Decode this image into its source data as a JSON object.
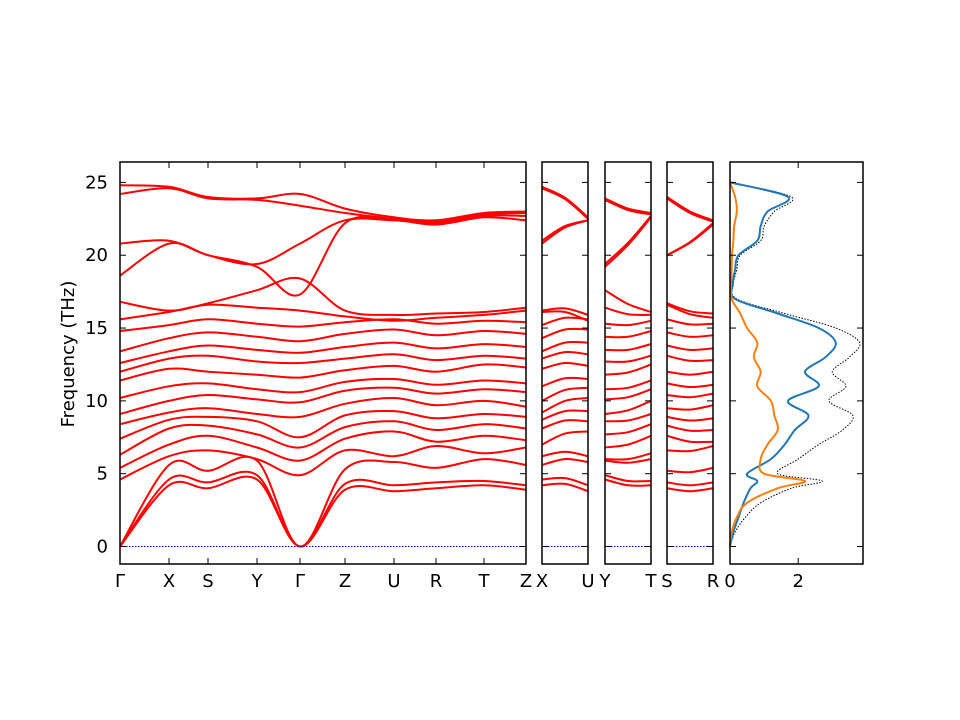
{
  "figure": {
    "colors": {
      "bands": "#ff0000",
      "zero_line": "#0000cc",
      "dos_total": "#000000",
      "dos_partial_1": "#1f77b4",
      "dos_partial_2": "#ff7f0e",
      "frame": "#000000"
    }
  },
  "chart_data": [
    {
      "type": "line",
      "ylabel": "Frequency (THz)",
      "ylim": [
        -1.2,
        26.4
      ],
      "yticks": [
        "0",
        "5",
        "10",
        "15",
        "20",
        "25"
      ],
      "xticks": [
        "Γ",
        "X",
        "S",
        "Y",
        "Γ",
        "Z",
        "U",
        "R",
        "T",
        "Z"
      ],
      "segments": [
        "Γ–X–S–Y–Γ–Z–U–R–T–Z",
        "X–U",
        "Y–T",
        "S–R"
      ],
      "zero_line": 0,
      "series": [
        {
          "values": [
            0.0,
            4.2,
            4.0,
            4.6,
            0.0,
            3.9,
            3.8,
            4.0,
            4.2,
            3.9
          ]
        },
        {
          "values": [
            0.0,
            4.6,
            4.4,
            4.9,
            0.0,
            4.3,
            4.2,
            4.4,
            4.5,
            4.2
          ]
        },
        {
          "values": [
            0.0,
            5.6,
            5.2,
            5.9,
            0.0,
            5.3,
            5.8,
            5.4,
            6.0,
            5.6
          ]
        },
        {
          "values": [
            4.6,
            6.2,
            6.6,
            6.0,
            4.9,
            6.6,
            6.2,
            6.9,
            6.4,
            6.8
          ]
        },
        {
          "values": [
            5.4,
            7.0,
            7.6,
            6.8,
            5.9,
            7.4,
            7.9,
            7.2,
            7.6,
            7.3
          ]
        },
        {
          "values": [
            6.3,
            8.1,
            8.3,
            7.7,
            6.8,
            8.2,
            8.6,
            8.0,
            8.4,
            8.1
          ]
        },
        {
          "values": [
            7.4,
            8.7,
            8.9,
            8.6,
            7.5,
            9.0,
            9.3,
            8.8,
            9.1,
            8.9
          ]
        },
        {
          "values": [
            8.4,
            9.2,
            9.5,
            9.1,
            8.9,
            9.8,
            10.2,
            9.7,
            10.0,
            9.6
          ]
        },
        {
          "values": [
            9.1,
            10.0,
            10.4,
            10.1,
            9.9,
            10.7,
            10.9,
            10.5,
            10.8,
            10.6
          ]
        },
        {
          "values": [
            10.2,
            11.0,
            11.2,
            10.8,
            10.6,
            11.3,
            11.5,
            11.1,
            11.4,
            11.2
          ]
        },
        {
          "values": [
            11.4,
            12.2,
            12.0,
            11.8,
            11.6,
            12.1,
            12.4,
            12.0,
            12.5,
            12.3
          ]
        },
        {
          "values": [
            12.0,
            12.9,
            13.1,
            12.7,
            12.6,
            12.9,
            13.2,
            12.8,
            13.1,
            12.9
          ]
        },
        {
          "values": [
            12.6,
            13.4,
            13.8,
            13.5,
            13.3,
            13.7,
            14.0,
            13.6,
            13.9,
            13.7
          ]
        },
        {
          "values": [
            13.4,
            14.3,
            14.7,
            14.4,
            14.1,
            14.6,
            14.9,
            14.5,
            14.8,
            14.6
          ]
        },
        {
          "values": [
            14.8,
            15.2,
            15.6,
            15.3,
            15.1,
            15.4,
            15.6,
            15.3,
            15.5,
            15.4
          ]
        },
        {
          "values": [
            15.6,
            16.1,
            16.6,
            16.4,
            16.2,
            15.8,
            15.5,
            15.7,
            15.9,
            16.2
          ]
        },
        {
          "values": [
            16.8,
            16.2,
            16.7,
            17.6,
            18.4,
            16.2,
            15.9,
            16.0,
            16.1,
            16.4
          ]
        },
        {
          "values": [
            18.6,
            20.8,
            20.0,
            19.2,
            17.3,
            22.2,
            22.4,
            22.1,
            22.6,
            22.4
          ]
        },
        {
          "values": [
            20.8,
            21.0,
            20.0,
            19.4,
            20.8,
            22.4,
            22.4,
            22.2,
            22.7,
            22.7
          ]
        },
        {
          "values": [
            24.2,
            24.6,
            23.9,
            23.8,
            23.4,
            22.9,
            22.5,
            22.3,
            22.8,
            22.9
          ]
        },
        {
          "values": [
            24.8,
            24.7,
            24.0,
            23.9,
            24.2,
            23.2,
            22.6,
            22.4,
            22.9,
            23.0
          ]
        }
      ]
    },
    {
      "type": "line",
      "xticks": [
        "0",
        "2"
      ],
      "xlim": [
        0,
        3.9
      ],
      "ylim": [
        -1.2,
        26.4
      ],
      "series": [
        {
          "color_key": "dos_total",
          "style": "dotted",
          "freq": [
            0,
            1,
            2,
            3,
            4,
            4.5,
            5,
            6,
            7,
            8,
            9,
            10,
            11,
            12,
            13,
            14,
            15,
            16,
            17,
            18,
            19,
            20,
            21,
            22,
            23,
            24,
            25
          ],
          "values": [
            0,
            0.15,
            0.45,
            0.9,
            1.8,
            2.7,
            1.4,
            2.0,
            2.6,
            3.3,
            3.6,
            2.9,
            3.4,
            3.0,
            3.5,
            3.8,
            3.1,
            1.6,
            0.2,
            0.1,
            0.2,
            0.3,
            0.9,
            1.0,
            1.3,
            1.8,
            0
          ]
        },
        {
          "color_key": "dos_partial_1",
          "style": "solid",
          "freq": [
            0,
            1,
            2,
            3,
            4,
            4.5,
            5,
            6,
            7,
            8,
            9,
            10,
            11,
            12,
            13,
            14,
            15,
            16,
            17,
            18,
            19,
            20,
            21,
            22,
            23,
            24,
            25
          ],
          "values": [
            0,
            0.1,
            0.25,
            0.4,
            0.6,
            0.8,
            0.5,
            1.2,
            1.6,
            1.9,
            2.3,
            1.7,
            2.6,
            2.2,
            2.8,
            3.1,
            2.6,
            1.4,
            0.15,
            0.08,
            0.15,
            0.25,
            0.8,
            0.9,
            1.1,
            1.7,
            0
          ]
        },
        {
          "color_key": "dos_partial_2",
          "style": "solid",
          "freq": [
            0,
            1,
            2,
            3,
            4,
            4.5,
            5,
            6,
            7,
            8,
            9,
            10,
            11,
            12,
            13,
            14,
            15,
            16,
            17,
            18,
            19,
            20,
            21,
            22,
            23,
            24,
            25
          ],
          "values": [
            0,
            0.05,
            0.2,
            0.5,
            1.4,
            2.2,
            1.0,
            0.9,
            1.1,
            1.4,
            1.3,
            1.2,
            0.8,
            0.9,
            0.7,
            0.8,
            0.5,
            0.3,
            0.05,
            0.03,
            0.05,
            0.06,
            0.1,
            0.12,
            0.2,
            0.15,
            0
          ]
        }
      ]
    }
  ]
}
